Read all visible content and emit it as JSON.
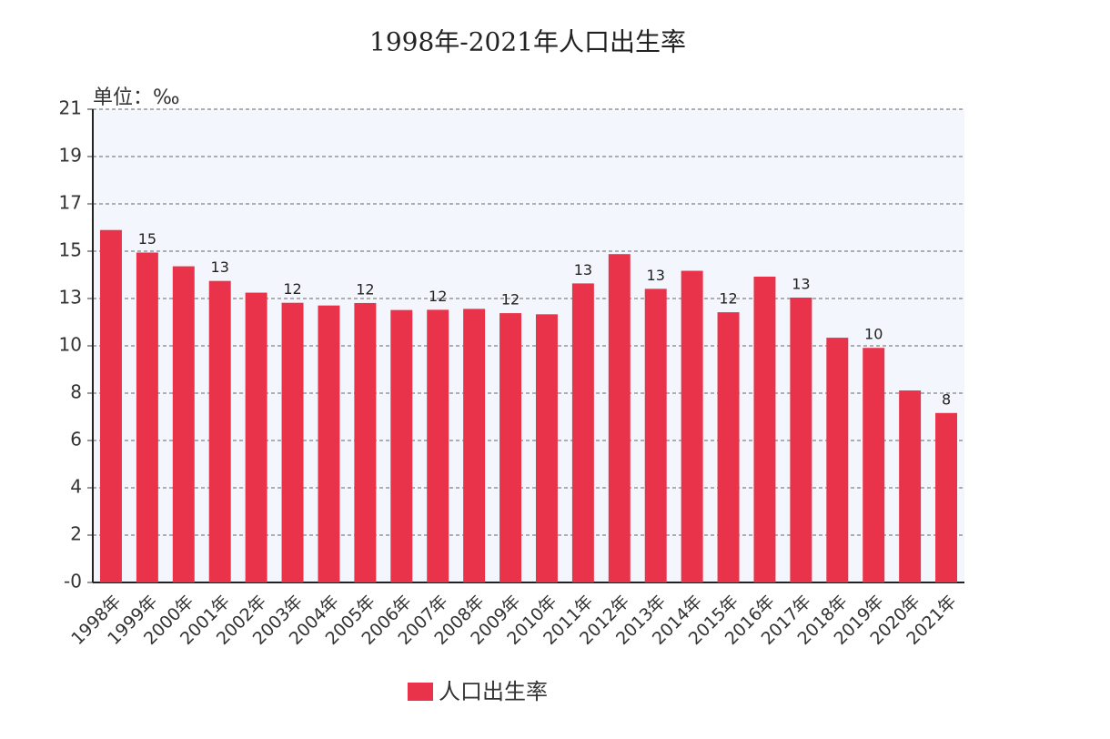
{
  "chart_data": {
    "type": "bar",
    "title": "1998年-2021年人口出生率",
    "y_unit": "单位：‰",
    "categories": [
      "1998年",
      "1999年",
      "2000年",
      "2001年",
      "2002年",
      "2003年",
      "2004年",
      "2005年",
      "2006年",
      "2007年",
      "2008年",
      "2009年",
      "2010年",
      "2011年",
      "2012年",
      "2013年",
      "2014年",
      "2015年",
      "2016年",
      "2017年",
      "2018年",
      "2019年",
      "2020年",
      "2021年"
    ],
    "series": [
      {
        "name": "人口出生率",
        "color": "#e8334a",
        "values": [
          15.64,
          14.64,
          14.03,
          13.38,
          12.86,
          12.41,
          12.29,
          12.4,
          12.09,
          12.1,
          12.14,
          11.95,
          11.9,
          13.27,
          14.57,
          13.03,
          13.83,
          11.99,
          13.57,
          12.64,
          10.86,
          10.41,
          8.52,
          7.52
        ],
        "value_labels": [
          null,
          "15",
          null,
          "13",
          null,
          "12",
          null,
          "12",
          null,
          "12",
          null,
          "12",
          null,
          "13",
          null,
          "13",
          null,
          "12",
          null,
          "13",
          null,
          "10",
          null,
          "8"
        ]
      }
    ],
    "ylim": [
      0,
      21
    ],
    "yticks": [
      {
        "value": 0,
        "label": "-0"
      },
      {
        "value": 2.1,
        "label": "2"
      },
      {
        "value": 4.2,
        "label": "4"
      },
      {
        "value": 6.3,
        "label": "6"
      },
      {
        "value": 8.4,
        "label": "8"
      },
      {
        "value": 10.5,
        "label": "10"
      },
      {
        "value": 12.6,
        "label": "13"
      },
      {
        "value": 14.7,
        "label": "15"
      },
      {
        "value": 16.8,
        "label": "17"
      },
      {
        "value": 18.9,
        "label": "19"
      },
      21
    ],
    "grid": true
  }
}
